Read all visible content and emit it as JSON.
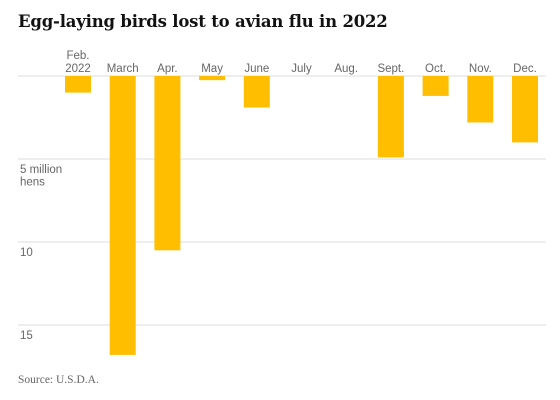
{
  "title": "Egg-laying birds lost to avian flu in 2022",
  "source": "Source: U.S.D.A.",
  "colors": {
    "bar": "#FFBF00",
    "grid": "#dddddd",
    "text": "#121212",
    "axis_text": "#666666"
  },
  "chart_data": {
    "type": "bar",
    "orientation": "downward",
    "title": "Egg-laying birds lost to avian flu in 2022",
    "unit": "million hens",
    "categories": [
      [
        "Feb.",
        "2022"
      ],
      [
        "March"
      ],
      [
        "Apr."
      ],
      [
        "May"
      ],
      [
        "June"
      ],
      [
        "July"
      ],
      [
        "Aug."
      ],
      [
        "Sept."
      ],
      [
        "Oct."
      ],
      [
        "Nov."
      ],
      [
        "Dec."
      ]
    ],
    "values": [
      1.0,
      16.8,
      10.5,
      0.25,
      1.9,
      0,
      0,
      4.9,
      1.2,
      2.8,
      4.0
    ],
    "ylim": [
      0,
      17
    ],
    "y_ticks": [
      {
        "value": 5,
        "label": [
          "5 million",
          "hens"
        ]
      },
      {
        "value": 10,
        "label": [
          "10"
        ]
      },
      {
        "value": 15,
        "label": [
          "15"
        ]
      }
    ],
    "grid": true,
    "legend": "none"
  }
}
